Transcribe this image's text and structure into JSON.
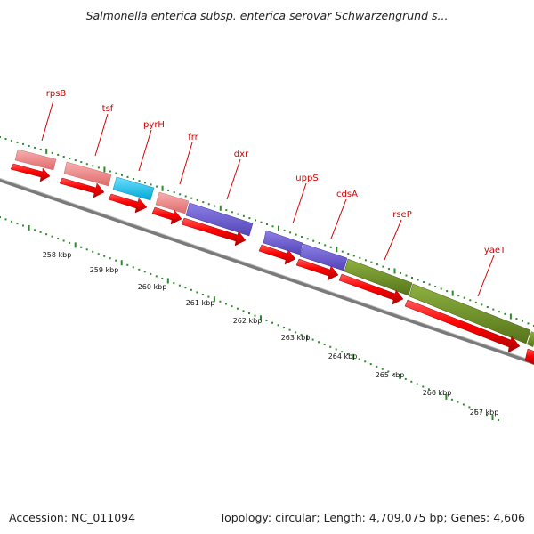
{
  "header": {
    "title": "Salmonella enterica subsp. enterica serovar Schwarzengrund s..."
  },
  "footer": {
    "accession": "Accession: NC_011094",
    "summary": "Topology: circular; Length: 4,709,075 bp; Genes: 4,606"
  },
  "colors": {
    "label": "#d40000",
    "cds": "#f00000",
    "rrna_pink": "#f08080",
    "cyan": "#19c3f0",
    "purple": "#6a5acd",
    "olive": "#6b8e23",
    "backbone": "#808080",
    "ticks": "#2d8a2d"
  },
  "map": {
    "genes": [
      {
        "name": "rpsB",
        "feature": "pink"
      },
      {
        "name": "tsf",
        "feature": "pink"
      },
      {
        "name": "pyrH",
        "feature": "cyan"
      },
      {
        "name": "frr",
        "feature": "pink"
      },
      {
        "name": "dxr",
        "feature": "purple"
      },
      {
        "name": "uppS",
        "feature": "purple"
      },
      {
        "name": "cdsA",
        "feature": "purple"
      },
      {
        "name": "rseP",
        "feature": "olive"
      },
      {
        "name": "yaeT",
        "feature": "olive"
      }
    ],
    "scale_labels": [
      "258 kbp",
      "259 kbp",
      "260 kbp",
      "261 kbp",
      "262 kbp",
      "263 kbp",
      "264 kbp",
      "265 kbp",
      "266 kbp",
      "267 kbp"
    ]
  }
}
